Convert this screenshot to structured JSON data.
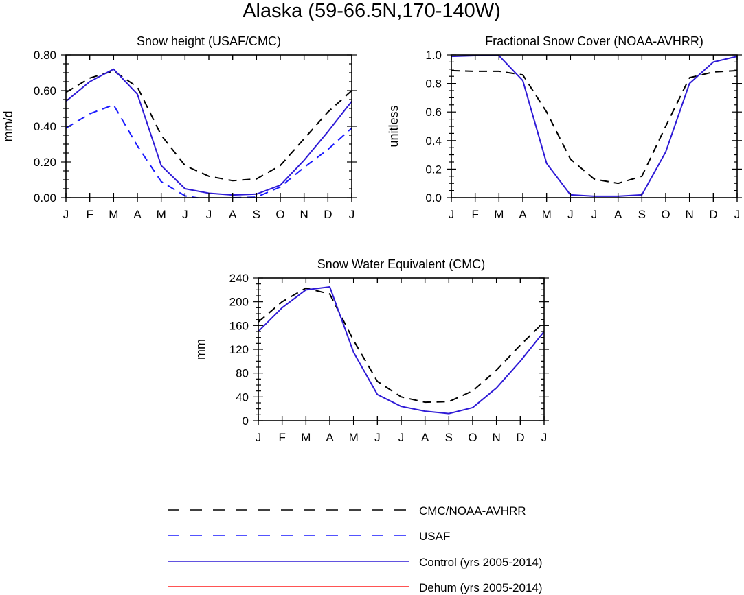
{
  "page_title": "Alaska (59-66.5N,170-140W)",
  "colors": {
    "cmc": "#000000",
    "usaf": "#1a1aff",
    "control": "#2e1ad6",
    "dehum": "#ff1a1a"
  },
  "chart_data": [
    {
      "type": "line",
      "title": "Snow height (USAF/CMC)",
      "xlabel": "",
      "ylabel": "mm/d",
      "categories": [
        "J",
        "F",
        "M",
        "A",
        "M",
        "J",
        "J",
        "A",
        "S",
        "O",
        "N",
        "D",
        "J"
      ],
      "ylim": [
        0,
        0.8
      ],
      "yticks": [
        "0.00",
        "0.20",
        "0.40",
        "0.60",
        "0.80"
      ],
      "ytick_values": [
        0,
        0.2,
        0.4,
        0.6,
        0.8
      ],
      "series": [
        {
          "name": "CMC/NOAA-AVHRR",
          "style": "dashed",
          "color": "#000000",
          "values": [
            0.59,
            0.67,
            0.71,
            0.62,
            0.35,
            0.18,
            0.12,
            0.095,
            0.105,
            0.18,
            0.33,
            0.48,
            0.6
          ]
        },
        {
          "name": "USAF",
          "style": "dashed",
          "color": "#1a1aff",
          "values": [
            0.39,
            0.47,
            0.52,
            0.29,
            0.09,
            0.01,
            -0.01,
            0.0,
            0.003,
            0.06,
            0.17,
            0.27,
            0.39
          ]
        },
        {
          "name": "Control (yrs 2005-2014)",
          "style": "solid",
          "color": "#2e1ad6",
          "values": [
            0.54,
            0.65,
            0.72,
            0.58,
            0.18,
            0.05,
            0.025,
            0.015,
            0.02,
            0.07,
            0.21,
            0.37,
            0.54
          ]
        }
      ]
    },
    {
      "type": "line",
      "title": "Fractional Snow Cover (NOAA-AVHRR)",
      "xlabel": "",
      "ylabel": "unitless",
      "categories": [
        "J",
        "F",
        "M",
        "A",
        "M",
        "J",
        "J",
        "A",
        "S",
        "O",
        "N",
        "D",
        "J"
      ],
      "ylim": [
        0,
        1.0
      ],
      "yticks": [
        "0.0",
        "0.2",
        "0.4",
        "0.6",
        "0.8",
        "1.0"
      ],
      "ytick_values": [
        0,
        0.2,
        0.4,
        0.6,
        0.8,
        1.0
      ],
      "series": [
        {
          "name": "CMC/NOAA-AVHRR",
          "style": "dashed",
          "color": "#000000",
          "values": [
            0.89,
            0.885,
            0.885,
            0.86,
            0.6,
            0.27,
            0.13,
            0.1,
            0.15,
            0.5,
            0.84,
            0.88,
            0.89
          ]
        },
        {
          "name": "Control (yrs 2005-2014)",
          "style": "solid",
          "color": "#2e1ad6",
          "values": [
            0.99,
            0.995,
            0.995,
            0.82,
            0.24,
            0.02,
            0.01,
            0.01,
            0.02,
            0.32,
            0.8,
            0.95,
            0.99
          ]
        }
      ]
    },
    {
      "type": "line",
      "title": "Snow Water Equivalent (CMC)",
      "xlabel": "",
      "ylabel": "mm",
      "categories": [
        "J",
        "F",
        "M",
        "A",
        "M",
        "J",
        "J",
        "A",
        "S",
        "O",
        "N",
        "D",
        "J"
      ],
      "ylim": [
        0,
        240
      ],
      "yticks": [
        "0",
        "40",
        "80",
        "120",
        "160",
        "200",
        "240"
      ],
      "ytick_values": [
        0,
        40,
        80,
        120,
        160,
        200,
        240
      ],
      "series": [
        {
          "name": "CMC/NOAA-AVHRR",
          "style": "dashed",
          "color": "#000000",
          "values": [
            166,
            200,
            223,
            213,
            135,
            66,
            40,
            31,
            32,
            50,
            85,
            127,
            166
          ]
        },
        {
          "name": "Control (yrs 2005-2014)",
          "style": "solid",
          "color": "#2e1ad6",
          "values": [
            150,
            190,
            220,
            225,
            115,
            44,
            24,
            16,
            12,
            22,
            55,
            100,
            150
          ]
        }
      ]
    }
  ],
  "legend": [
    {
      "label": "CMC/NOAA-AVHRR",
      "style": "dashed",
      "color": "#000000"
    },
    {
      "label": "USAF",
      "style": "dashed",
      "color": "#1a1aff"
    },
    {
      "label": "Control (yrs 2005-2014)",
      "style": "solid",
      "color": "#2e1ad6"
    },
    {
      "label": "Dehum (yrs 2005-2014)",
      "style": "solid",
      "color": "#ff1a1a"
    }
  ]
}
